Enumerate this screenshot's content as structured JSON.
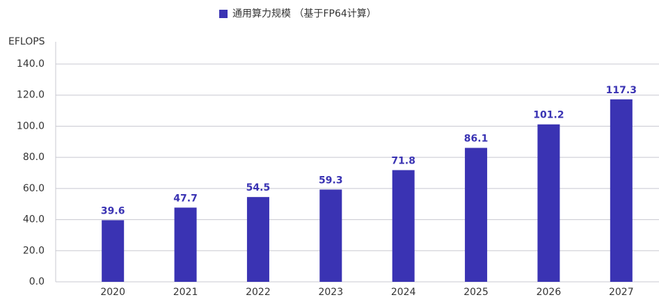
{
  "chart_data": {
    "type": "bar",
    "y_axis_label": "EFLOPS",
    "categories": [
      "2020",
      "2021",
      "2022",
      "2023",
      "2024",
      "2025",
      "2026",
      "2027"
    ],
    "series": [
      {
        "name": "通用算力规模 （基于FP64计算）",
        "color": "#3a33b3",
        "values": [
          39.6,
          47.7,
          54.5,
          59.3,
          71.8,
          86.1,
          101.2,
          117.3
        ]
      }
    ],
    "ylim": [
      0,
      140
    ],
    "yticks": [
      {
        "value": 0,
        "label": "0.0"
      },
      {
        "value": 20,
        "label": "20.0"
      },
      {
        "value": 40,
        "label": "40.0"
      },
      {
        "value": 60,
        "label": "60.0"
      },
      {
        "value": 80,
        "label": "80.0"
      },
      {
        "value": 100,
        "label": "100.0"
      },
      {
        "value": 120,
        "label": "120.0"
      },
      {
        "value": 140,
        "label": "140.0"
      }
    ],
    "grid": true,
    "legend": "top"
  }
}
